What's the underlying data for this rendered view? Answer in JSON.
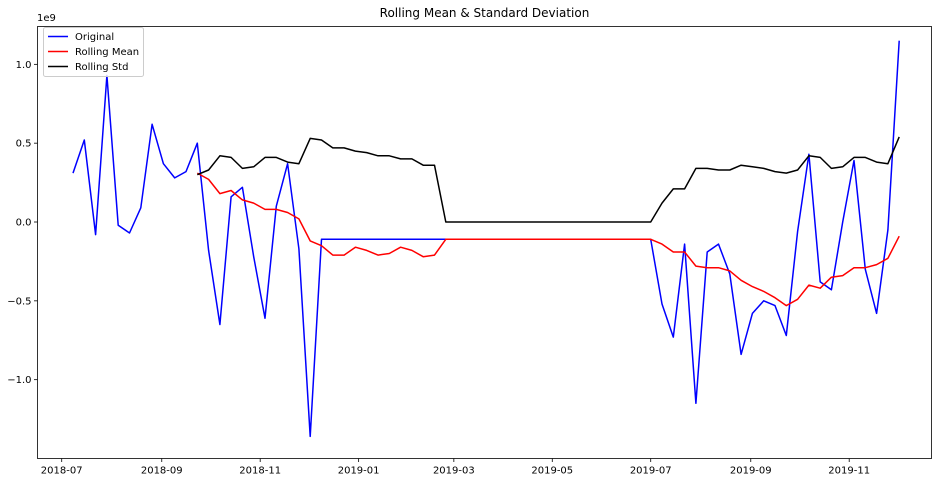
{
  "chart_data": {
    "type": "line",
    "title": "Rolling Mean & Standard Deviation",
    "y_offset_label": "1e9",
    "xlabel": "",
    "ylabel": "",
    "xlim": [
      "2018-06-16",
      "2019-12-22"
    ],
    "ylim": [
      -1.5,
      1.24
    ],
    "x_ticks": [
      {
        "date": "2018-07-01",
        "label": "2018-07"
      },
      {
        "date": "2018-09-01",
        "label": "2018-09"
      },
      {
        "date": "2018-11-01",
        "label": "2018-11"
      },
      {
        "date": "2019-01-01",
        "label": "2019-01"
      },
      {
        "date": "2019-03-01",
        "label": "2019-03"
      },
      {
        "date": "2019-05-01",
        "label": "2019-05"
      },
      {
        "date": "2019-07-01",
        "label": "2019-07"
      },
      {
        "date": "2019-09-01",
        "label": "2019-09"
      },
      {
        "date": "2019-11-01",
        "label": "2019-11"
      }
    ],
    "y_ticks": [
      {
        "value": 1.0,
        "label": "1.0"
      },
      {
        "value": 0.5,
        "label": "0.5"
      },
      {
        "value": 0.0,
        "label": "0.0"
      },
      {
        "value": -0.5,
        "label": "−0.5"
      },
      {
        "value": -1.0,
        "label": "−1.0"
      }
    ],
    "grid": false,
    "legend_position": "top-left",
    "series": [
      {
        "name": "Original",
        "color": "#0000ff",
        "points": [
          [
            "2018-07-08",
            0.31
          ],
          [
            "2018-07-15",
            0.52
          ],
          [
            "2018-07-22",
            -0.08
          ],
          [
            "2018-07-29",
            0.93
          ],
          [
            "2018-08-05",
            -0.02
          ],
          [
            "2018-08-12",
            -0.07
          ],
          [
            "2018-08-19",
            0.09
          ],
          [
            "2018-08-26",
            0.62
          ],
          [
            "2018-09-02",
            0.37
          ],
          [
            "2018-09-09",
            0.28
          ],
          [
            "2018-09-16",
            0.32
          ],
          [
            "2018-09-23",
            0.5
          ],
          [
            "2018-09-30",
            -0.18
          ],
          [
            "2018-10-07",
            -0.65
          ],
          [
            "2018-10-14",
            0.16
          ],
          [
            "2018-10-21",
            0.22
          ],
          [
            "2018-10-28",
            -0.22
          ],
          [
            "2018-11-04",
            -0.61
          ],
          [
            "2018-11-11",
            0.1
          ],
          [
            "2018-11-18",
            0.37
          ],
          [
            "2018-11-25",
            -0.17
          ],
          [
            "2018-12-02",
            -1.36
          ],
          [
            "2018-12-09",
            -0.11
          ],
          [
            "2019-02-24",
            -0.11
          ],
          [
            "2019-07-01",
            -0.11
          ],
          [
            "2019-07-08",
            -0.52
          ],
          [
            "2019-07-15",
            -0.73
          ],
          [
            "2019-07-22",
            -0.14
          ],
          [
            "2019-07-29",
            -1.15
          ],
          [
            "2019-08-05",
            -0.19
          ],
          [
            "2019-08-12",
            -0.14
          ],
          [
            "2019-08-19",
            -0.33
          ],
          [
            "2019-08-26",
            -0.84
          ],
          [
            "2019-09-02",
            -0.58
          ],
          [
            "2019-09-09",
            -0.5
          ],
          [
            "2019-09-16",
            -0.53
          ],
          [
            "2019-09-23",
            -0.72
          ],
          [
            "2019-09-30",
            -0.06
          ],
          [
            "2019-10-07",
            0.43
          ],
          [
            "2019-10-14",
            -0.38
          ],
          [
            "2019-10-21",
            -0.43
          ],
          [
            "2019-10-28",
            0.0
          ],
          [
            "2019-11-04",
            0.39
          ],
          [
            "2019-11-11",
            -0.3
          ],
          [
            "2019-11-18",
            -0.58
          ],
          [
            "2019-11-25",
            -0.05
          ],
          [
            "2019-12-02",
            1.15
          ]
        ]
      },
      {
        "name": "Rolling Mean",
        "color": "#ff0000",
        "points": [
          [
            "2018-09-23",
            0.31
          ],
          [
            "2018-09-30",
            0.27
          ],
          [
            "2018-10-07",
            0.18
          ],
          [
            "2018-10-14",
            0.2
          ],
          [
            "2018-10-21",
            0.14
          ],
          [
            "2018-10-28",
            0.12
          ],
          [
            "2018-11-04",
            0.08
          ],
          [
            "2018-11-11",
            0.08
          ],
          [
            "2018-11-18",
            0.06
          ],
          [
            "2018-11-25",
            0.02
          ],
          [
            "2018-12-02",
            -0.12
          ],
          [
            "2018-12-09",
            -0.15
          ],
          [
            "2018-12-16",
            -0.21
          ],
          [
            "2018-12-23",
            -0.21
          ],
          [
            "2018-12-30",
            -0.16
          ],
          [
            "2019-01-06",
            -0.18
          ],
          [
            "2019-01-13",
            -0.21
          ],
          [
            "2019-01-20",
            -0.2
          ],
          [
            "2019-01-27",
            -0.16
          ],
          [
            "2019-02-03",
            -0.18
          ],
          [
            "2019-02-10",
            -0.22
          ],
          [
            "2019-02-17",
            -0.21
          ],
          [
            "2019-02-24",
            -0.11
          ],
          [
            "2019-07-01",
            -0.11
          ],
          [
            "2019-07-08",
            -0.14
          ],
          [
            "2019-07-15",
            -0.19
          ],
          [
            "2019-07-22",
            -0.19
          ],
          [
            "2019-07-29",
            -0.28
          ],
          [
            "2019-08-05",
            -0.29
          ],
          [
            "2019-08-12",
            -0.29
          ],
          [
            "2019-08-19",
            -0.31
          ],
          [
            "2019-08-26",
            -0.37
          ],
          [
            "2019-09-02",
            -0.41
          ],
          [
            "2019-09-09",
            -0.44
          ],
          [
            "2019-09-16",
            -0.48
          ],
          [
            "2019-09-23",
            -0.53
          ],
          [
            "2019-09-30",
            -0.49
          ],
          [
            "2019-10-07",
            -0.4
          ],
          [
            "2019-10-14",
            -0.42
          ],
          [
            "2019-10-21",
            -0.35
          ],
          [
            "2019-10-28",
            -0.34
          ],
          [
            "2019-11-04",
            -0.29
          ],
          [
            "2019-11-11",
            -0.29
          ],
          [
            "2019-11-18",
            -0.27
          ],
          [
            "2019-11-25",
            -0.23
          ],
          [
            "2019-12-02",
            -0.09
          ]
        ]
      },
      {
        "name": "Rolling Std",
        "color": "#000000",
        "points": [
          [
            "2018-09-23",
            0.3
          ],
          [
            "2018-09-30",
            0.33
          ],
          [
            "2018-10-07",
            0.42
          ],
          [
            "2018-10-14",
            0.41
          ],
          [
            "2018-10-21",
            0.34
          ],
          [
            "2018-10-28",
            0.35
          ],
          [
            "2018-11-04",
            0.41
          ],
          [
            "2018-11-11",
            0.41
          ],
          [
            "2018-11-18",
            0.38
          ],
          [
            "2018-11-25",
            0.37
          ],
          [
            "2018-12-02",
            0.53
          ],
          [
            "2018-12-09",
            0.52
          ],
          [
            "2018-12-16",
            0.47
          ],
          [
            "2018-12-23",
            0.47
          ],
          [
            "2018-12-30",
            0.45
          ],
          [
            "2019-01-06",
            0.44
          ],
          [
            "2019-01-13",
            0.42
          ],
          [
            "2019-01-20",
            0.42
          ],
          [
            "2019-01-27",
            0.4
          ],
          [
            "2019-02-03",
            0.4
          ],
          [
            "2019-02-10",
            0.36
          ],
          [
            "2019-02-17",
            0.36
          ],
          [
            "2019-02-24",
            0.0
          ],
          [
            "2019-07-01",
            0.0
          ],
          [
            "2019-07-08",
            0.12
          ],
          [
            "2019-07-15",
            0.21
          ],
          [
            "2019-07-22",
            0.21
          ],
          [
            "2019-07-29",
            0.34
          ],
          [
            "2019-08-05",
            0.34
          ],
          [
            "2019-08-12",
            0.33
          ],
          [
            "2019-08-19",
            0.33
          ],
          [
            "2019-08-26",
            0.36
          ],
          [
            "2019-09-02",
            0.35
          ],
          [
            "2019-09-09",
            0.34
          ],
          [
            "2019-09-16",
            0.32
          ],
          [
            "2019-09-23",
            0.31
          ],
          [
            "2019-09-30",
            0.33
          ],
          [
            "2019-10-07",
            0.42
          ],
          [
            "2019-10-14",
            0.41
          ],
          [
            "2019-10-21",
            0.34
          ],
          [
            "2019-10-28",
            0.35
          ],
          [
            "2019-11-04",
            0.41
          ],
          [
            "2019-11-11",
            0.41
          ],
          [
            "2019-11-18",
            0.38
          ],
          [
            "2019-11-25",
            0.37
          ],
          [
            "2019-12-02",
            0.54
          ]
        ]
      }
    ]
  }
}
